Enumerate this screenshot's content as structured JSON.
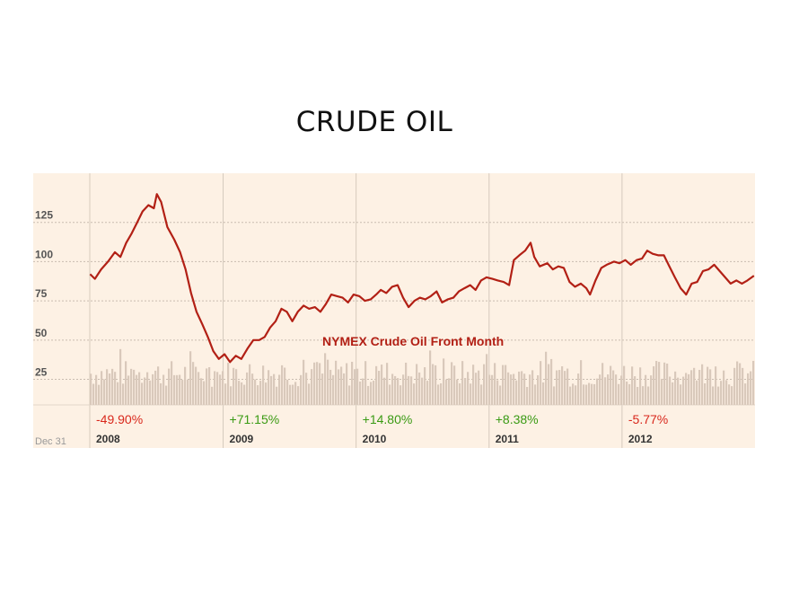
{
  "slide": {
    "title": "CRUDE OIL"
  },
  "chart_data": {
    "type": "line",
    "annotation": "NYMEX Crude Oil Front Month",
    "corner_label": "Dec 31",
    "ylim": [
      15,
      150
    ],
    "y_ticks": [
      "125",
      "100",
      "75",
      "50",
      "25"
    ],
    "y_tick_values": [
      125,
      100,
      75,
      50,
      25
    ],
    "x_range": [
      "2008-01-01",
      "2012-12-31"
    ],
    "grid": true,
    "colors": {
      "line": "#b22015",
      "volume": "#d9c9bb",
      "positive": "#3a9a13",
      "negative": "#d9281c",
      "background": "#fdf1e4"
    },
    "years": [
      {
        "year": "2008",
        "change": "-49.90%",
        "direction": "negative"
      },
      {
        "year": "2009",
        "change": "+71.15%",
        "direction": "positive"
      },
      {
        "year": "2010",
        "change": "+14.80%",
        "direction": "positive"
      },
      {
        "year": "2011",
        "change": "+8.38%",
        "direction": "positive"
      },
      {
        "year": "2012",
        "change": "-5.77%",
        "direction": "negative"
      }
    ],
    "series": [
      {
        "x": [
          "2008-01-02",
          "2008-01-15",
          "2008-02-01",
          "2008-02-20",
          "2008-03-10",
          "2008-03-25",
          "2008-04-10",
          "2008-04-25",
          "2008-05-10",
          "2008-05-25",
          "2008-06-10",
          "2008-06-25",
          "2008-07-03",
          "2008-07-15",
          "2008-08-01",
          "2008-08-20",
          "2008-09-05",
          "2008-09-20",
          "2008-10-05",
          "2008-10-20",
          "2008-11-05",
          "2008-11-20",
          "2008-12-05",
          "2008-12-20",
          "2009-01-05",
          "2009-01-20",
          "2009-02-05",
          "2009-02-20",
          "2009-03-10",
          "2009-03-25",
          "2009-04-10",
          "2009-04-25",
          "2009-05-10",
          "2009-05-25",
          "2009-06-10",
          "2009-06-25",
          "2009-07-10",
          "2009-07-25",
          "2009-08-10",
          "2009-08-25",
          "2009-09-10",
          "2009-09-25",
          "2009-10-10",
          "2009-10-25",
          "2009-11-10",
          "2009-11-25",
          "2009-12-10",
          "2009-12-25",
          "2010-01-10",
          "2010-01-25",
          "2010-02-10",
          "2010-02-25",
          "2010-03-10",
          "2010-03-25",
          "2010-04-10",
          "2010-04-25",
          "2010-05-10",
          "2010-05-25",
          "2010-06-10",
          "2010-06-25",
          "2010-07-10",
          "2010-07-25",
          "2010-08-10",
          "2010-08-25",
          "2010-09-10",
          "2010-09-25",
          "2010-10-10",
          "2010-10-25",
          "2010-11-10",
          "2010-11-25",
          "2010-12-10",
          "2010-12-25",
          "2011-01-10",
          "2011-01-25",
          "2011-02-10",
          "2011-02-25",
          "2011-03-10",
          "2011-03-25",
          "2011-04-10",
          "2011-04-25",
          "2011-05-05",
          "2011-05-20",
          "2011-06-10",
          "2011-06-25",
          "2011-07-10",
          "2011-07-25",
          "2011-08-10",
          "2011-08-25",
          "2011-09-10",
          "2011-09-25",
          "2011-10-05",
          "2011-10-20",
          "2011-11-05",
          "2011-11-20",
          "2011-12-10",
          "2011-12-25",
          "2012-01-10",
          "2012-01-25",
          "2012-02-10",
          "2012-02-25",
          "2012-03-10",
          "2012-03-25",
          "2012-04-10",
          "2012-04-25",
          "2012-05-10",
          "2012-05-25",
          "2012-06-10",
          "2012-06-25",
          "2012-07-10",
          "2012-07-25",
          "2012-08-10",
          "2012-08-25",
          "2012-09-10",
          "2012-09-25",
          "2012-10-10",
          "2012-10-25",
          "2012-11-10",
          "2012-11-25",
          "2012-12-10",
          "2012-12-28"
        ],
        "values": [
          92,
          89,
          95,
          100,
          106,
          103,
          112,
          118,
          125,
          132,
          136,
          134,
          143,
          138,
          122,
          114,
          106,
          95,
          80,
          68,
          60,
          52,
          43,
          38,
          41,
          36,
          40,
          38,
          45,
          50,
          50,
          52,
          58,
          62,
          70,
          68,
          62,
          68,
          72,
          70,
          71,
          68,
          73,
          79,
          78,
          77,
          74,
          79,
          78,
          75,
          76,
          79,
          82,
          80,
          84,
          85,
          77,
          71,
          75,
          77,
          76,
          78,
          81,
          74,
          76,
          77,
          81,
          83,
          85,
          82,
          88,
          90,
          89,
          88,
          87,
          85,
          101,
          104,
          107,
          112,
          103,
          97,
          99,
          95,
          97,
          96,
          87,
          84,
          86,
          83,
          79,
          88,
          96,
          98,
          100,
          99,
          101,
          98,
          101,
          102,
          107,
          105,
          104,
          104,
          97,
          90,
          83,
          79,
          86,
          87,
          94,
          95,
          98,
          94,
          90,
          86,
          88,
          86,
          88,
          91
        ]
      }
    ]
  }
}
